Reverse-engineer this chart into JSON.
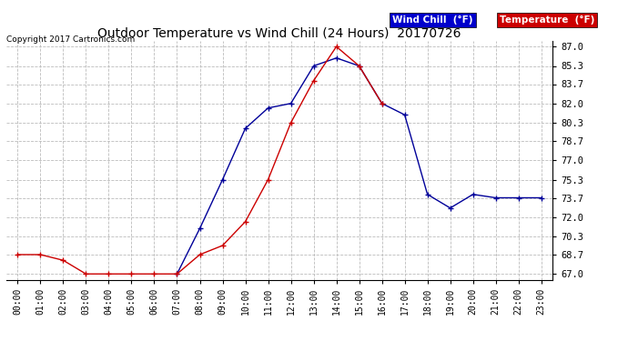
{
  "title": "Outdoor Temperature vs Wind Chill (24 Hours)  20170726",
  "copyright": "Copyright 2017 Cartronics.com",
  "x_labels": [
    "00:00",
    "01:00",
    "02:00",
    "03:00",
    "04:00",
    "05:00",
    "06:00",
    "07:00",
    "08:00",
    "09:00",
    "10:00",
    "11:00",
    "12:00",
    "13:00",
    "14:00",
    "15:00",
    "16:00",
    "17:00",
    "18:00",
    "19:00",
    "20:00",
    "21:00",
    "22:00",
    "23:00"
  ],
  "y_ticks": [
    67.0,
    68.7,
    70.3,
    72.0,
    73.7,
    75.3,
    77.0,
    78.7,
    80.3,
    82.0,
    83.7,
    85.3,
    87.0
  ],
  "ylim": [
    66.5,
    87.5
  ],
  "temperature": [
    68.7,
    68.7,
    68.2,
    67.0,
    67.0,
    67.0,
    67.0,
    67.0,
    68.7,
    69.5,
    71.6,
    75.3,
    80.3,
    84.0,
    87.0,
    85.3,
    82.0,
    null,
    null,
    null,
    null,
    null,
    null,
    null
  ],
  "wind_chill": [
    null,
    null,
    null,
    null,
    null,
    null,
    null,
    67.0,
    71.0,
    75.3,
    79.8,
    81.6,
    82.0,
    85.3,
    86.0,
    85.3,
    82.0,
    81.0,
    74.0,
    72.8,
    74.0,
    73.7,
    73.7,
    73.7
  ],
  "temp_color": "#cc0000",
  "wind_color": "#000099",
  "bg_color": "#ffffff",
  "grid_color": "#bbbbbb",
  "legend_wind_bg": "#0000cc",
  "legend_temp_bg": "#cc0000",
  "legend_wind_text": "Wind Chill  (°F)",
  "legend_temp_text": "Temperature  (°F)"
}
